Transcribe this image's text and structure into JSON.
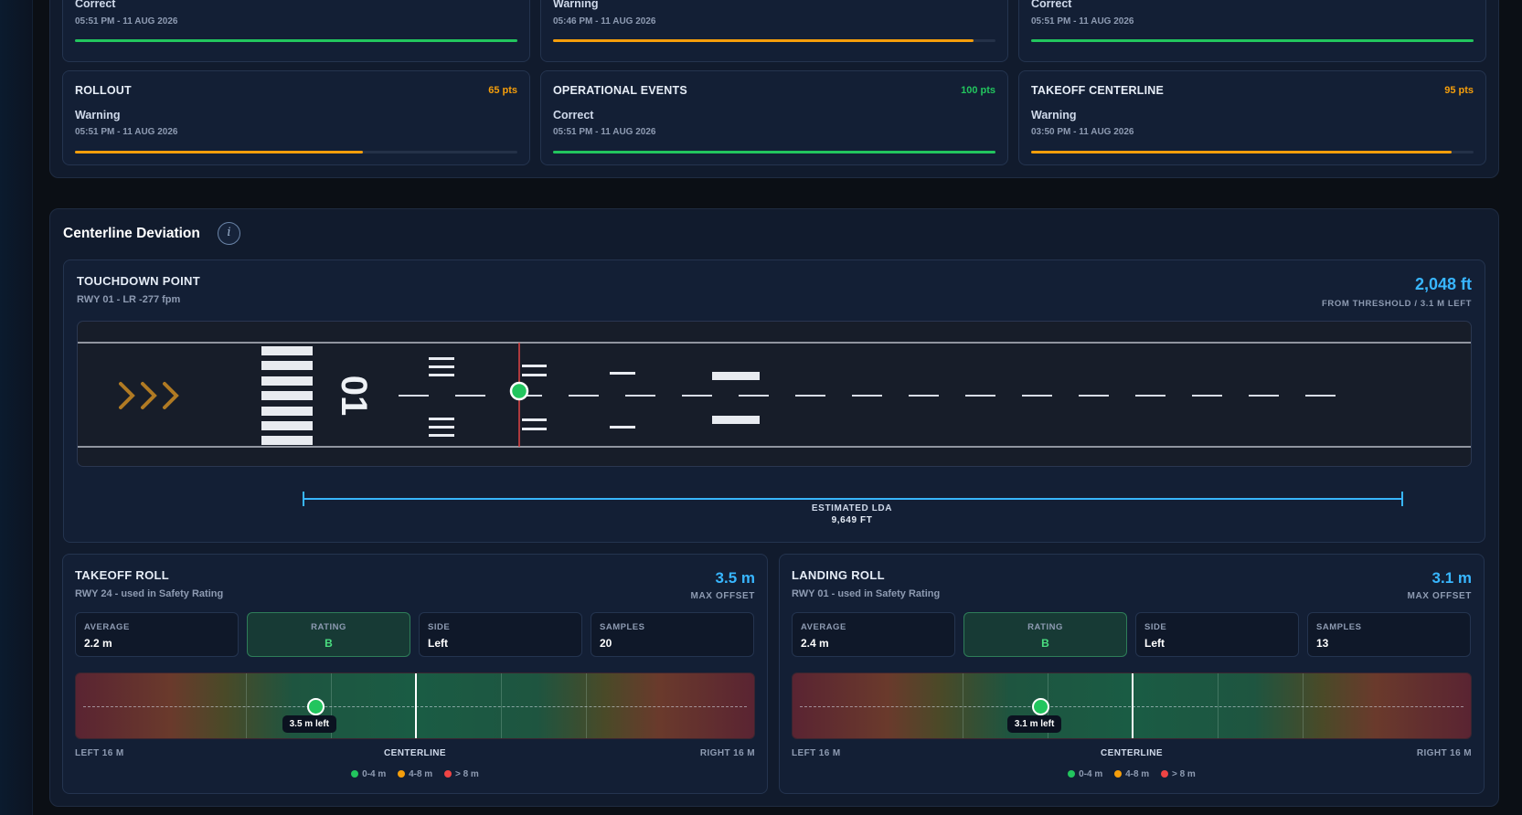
{
  "score_cards": [
    {
      "title": "",
      "pts": "",
      "status": "Correct",
      "time": "05:51 PM - 11 AUG 2026",
      "progress": 1.0,
      "tone": "green"
    },
    {
      "title": "",
      "pts": "",
      "status": "Warning",
      "time": "05:46 PM - 11 AUG 2026",
      "progress": 0.95,
      "tone": "orange"
    },
    {
      "title": "",
      "pts": "",
      "status": "Correct",
      "time": "05:51 PM - 11 AUG 2026",
      "progress": 1.0,
      "tone": "green"
    },
    {
      "title": "ROLLOUT",
      "pts": "65 pts",
      "status": "Warning",
      "time": "05:51 PM - 11 AUG 2026",
      "progress": 0.65,
      "tone": "orange"
    },
    {
      "title": "OPERATIONAL EVENTS",
      "pts": "100 pts",
      "status": "Correct",
      "time": "05:51 PM - 11 AUG 2026",
      "progress": 1.0,
      "tone": "green"
    },
    {
      "title": "TAKEOFF CENTERLINE",
      "pts": "95 pts",
      "status": "Warning",
      "time": "03:50 PM - 11 AUG 2026",
      "progress": 0.95,
      "tone": "orange"
    }
  ],
  "centerline": {
    "title": "Centerline Deviation",
    "info_glyph": "i",
    "touchdown": {
      "title": "TOUCHDOWN POINT",
      "subtitle": "RWY 01 - LR -277 fpm",
      "value": "2,048 ft",
      "value_label": "FROM THRESHOLD / 3.1 M LEFT",
      "runway_number": "01",
      "lda_label": "ESTIMATED LDA",
      "lda_value": "9,649 FT"
    },
    "rolls": [
      {
        "title": "TAKEOFF ROLL",
        "subtitle": "RWY 24 - used in Safety Rating",
        "value": "3.5 m",
        "value_label": "MAX OFFSET",
        "stats": [
          {
            "label": "AVERAGE",
            "value": "2.2 m"
          },
          {
            "label": "RATING",
            "value": "B"
          },
          {
            "label": "SIDE",
            "value": "Left"
          },
          {
            "label": "SAMPLES",
            "value": "20"
          }
        ],
        "deviation_m": -3.5,
        "marker_label": "3.5 m left",
        "left_label": "LEFT 16 M",
        "center_label": "CENTERLINE",
        "right_label": "RIGHT 16 M"
      },
      {
        "title": "LANDING ROLL",
        "subtitle": "RWY 01 - used in Safety Rating",
        "value": "3.1 m",
        "value_label": "MAX OFFSET",
        "stats": [
          {
            "label": "AVERAGE",
            "value": "2.4 m"
          },
          {
            "label": "RATING",
            "value": "B"
          },
          {
            "label": "SIDE",
            "value": "Left"
          },
          {
            "label": "SAMPLES",
            "value": "13"
          }
        ],
        "deviation_m": -3.1,
        "marker_label": "3.1 m left",
        "left_label": "LEFT 16 M",
        "center_label": "CENTERLINE",
        "right_label": "RIGHT 16 M"
      }
    ],
    "legend": [
      {
        "label": "0-4 m",
        "color": "#22c55e"
      },
      {
        "label": "4-8 m",
        "color": "#f59e0b"
      },
      {
        "label": "> 8 m",
        "color": "#ef4444"
      }
    ]
  },
  "colors": {
    "accent": "#38b6ff",
    "good": "#22c55e",
    "warn": "#f59e0b",
    "bad": "#ef4444"
  }
}
